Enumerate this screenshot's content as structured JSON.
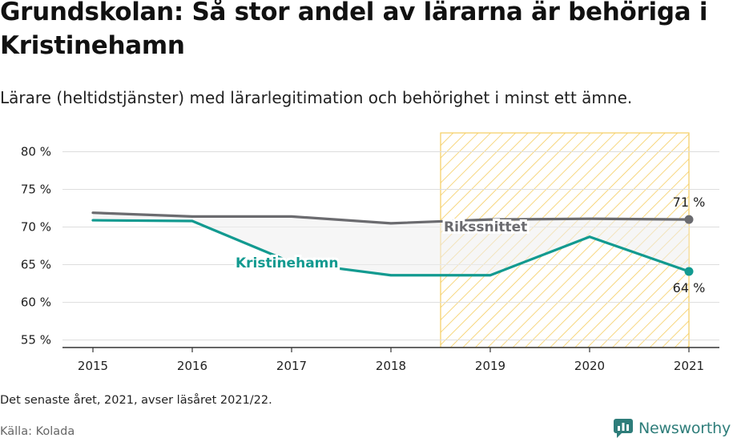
{
  "title": "Grundskolan: Så stor andel av lärarna är behöriga i Kristinehamn",
  "subtitle": "Lärare (heltidstjänster) med lärarlegitimation och behörighet i minst ett ämne.",
  "footnote": "Det senaste året, 2021, avser läsåret 2021/22.",
  "source": "Källa: Kolada",
  "brand": {
    "name": "Newsworthy",
    "icon": "newsworthy-logo-icon",
    "color": "#2e7d7a"
  },
  "chart_data": {
    "type": "line",
    "x": [
      2015,
      2016,
      2017,
      2018,
      2019,
      2020,
      2021
    ],
    "x_tick_labels": [
      "2015",
      "2016",
      "2017",
      "2018",
      "2019",
      "2020",
      "2021"
    ],
    "y_ticks": [
      55,
      60,
      65,
      70,
      75,
      80
    ],
    "y_tick_labels": [
      "55 %",
      "60 %",
      "65 %",
      "70 %",
      "75 %",
      "80 %"
    ],
    "ylim": [
      54,
      82.5
    ],
    "xlim": [
      2014.65,
      2021.3
    ],
    "grid": true,
    "series": [
      {
        "name": "Rikssnittet",
        "color": "#6b6b6f",
        "values": [
          71.9,
          71.4,
          71.4,
          70.5,
          71.0,
          71.1,
          71.0
        ],
        "end_label": "71 %"
      },
      {
        "name": "Kristinehamn",
        "color": "#129a90",
        "values": [
          70.9,
          70.8,
          65.3,
          63.6,
          63.6,
          68.7,
          64.1
        ],
        "end_label": "64 %"
      }
    ],
    "highlight_range": {
      "from": 2018.5,
      "to": 2021,
      "fill": "#f5cd60"
    },
    "gap_fill_color": "#eeeeee"
  }
}
